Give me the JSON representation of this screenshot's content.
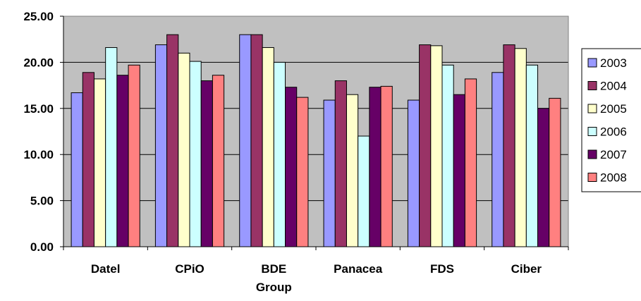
{
  "chart_data": {
    "type": "bar",
    "categories": [
      [
        "Datel"
      ],
      [
        "CPiO"
      ],
      [
        "BDE",
        "Group"
      ],
      [
        "Panacea"
      ],
      [
        "FDS"
      ],
      [
        "Ciber"
      ]
    ],
    "ylim": [
      0,
      25
    ],
    "yticks": [
      "0.00",
      "5.00",
      "10.00",
      "15.00",
      "20.00",
      "25.00"
    ],
    "ytick_values": [
      0,
      5,
      10,
      15,
      20,
      25
    ],
    "grid": true,
    "legend": "right",
    "plot_background": "#c0c0c0",
    "series": [
      {
        "name": "2003",
        "color": "#9999ff",
        "values": [
          16.7,
          21.9,
          23.0,
          15.9,
          15.9,
          18.9
        ]
      },
      {
        "name": "2004",
        "color": "#993366",
        "values": [
          18.9,
          23.0,
          23.0,
          18.0,
          21.9,
          21.9
        ]
      },
      {
        "name": "2005",
        "color": "#ffffcc",
        "values": [
          18.2,
          21.0,
          21.6,
          16.5,
          21.8,
          21.5
        ]
      },
      {
        "name": "2006",
        "color": "#ccffff",
        "values": [
          21.6,
          20.1,
          20.0,
          12.0,
          19.7,
          19.7
        ]
      },
      {
        "name": "2007",
        "color": "#660066",
        "values": [
          18.6,
          18.0,
          17.3,
          17.3,
          16.5,
          15.0
        ]
      },
      {
        "name": "2008",
        "color": "#ff8080",
        "values": [
          19.7,
          18.6,
          16.2,
          17.4,
          18.2,
          16.1
        ]
      }
    ]
  }
}
